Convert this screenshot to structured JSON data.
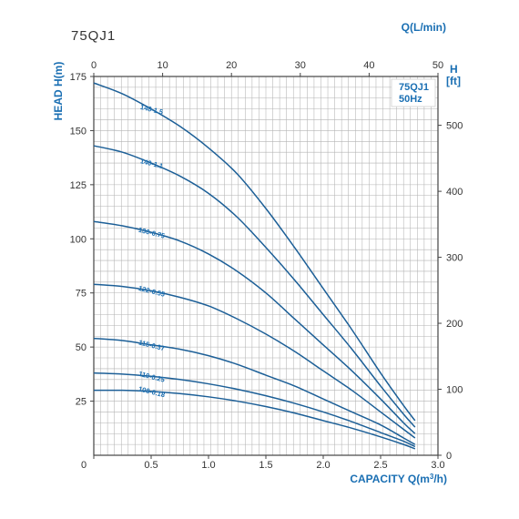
{
  "chart_title": "75QJ1",
  "legend_box": {
    "line1": "75QJ1",
    "line2": "50Hz"
  },
  "colors": {
    "curve": "#1c5f97",
    "accent": "#1a6fb3",
    "grid": "#b3b3b3",
    "frame": "#444444"
  },
  "chart_data": {
    "type": "line",
    "title": "75QJ1",
    "xlabel": "CAPACITY Q(m³/h)",
    "ylabel": "HEAD H(m)",
    "x2label": "Q(L/min)",
    "y2label": "H",
    "y2unit": "[ft]",
    "xlim": [
      0,
      3.0
    ],
    "ylim": [
      0,
      175
    ],
    "x2lim": [
      0,
      50
    ],
    "y2lim": [
      0,
      574
    ],
    "xticks": [
      "0",
      "0.5",
      "1.0",
      "1.5",
      "2.0",
      "2.5",
      "3.0"
    ],
    "yticks": [
      "25",
      "50",
      "75",
      "100",
      "125",
      "150",
      "175"
    ],
    "x2ticks": [
      "0",
      "10",
      "20",
      "30",
      "40",
      "50"
    ],
    "y2ticks": [
      "0",
      "100",
      "200",
      "300",
      "400",
      "500"
    ],
    "grid": true,
    "series": [
      {
        "name": "148-1.5",
        "x": [
          0,
          0.25,
          0.5,
          0.75,
          1.0,
          1.25,
          1.5,
          1.75,
          2.0,
          2.25,
          2.5,
          2.7,
          2.8
        ],
        "y": [
          172,
          167,
          160,
          152,
          142,
          130,
          114,
          96,
          77,
          58,
          38,
          23,
          16
        ]
      },
      {
        "name": "140-1.1",
        "x": [
          0,
          0.25,
          0.5,
          0.75,
          1.0,
          1.25,
          1.5,
          1.75,
          2.0,
          2.25,
          2.5,
          2.7,
          2.8
        ],
        "y": [
          143,
          140,
          135,
          129,
          121,
          110,
          96,
          81,
          65,
          49,
          32,
          19,
          13
        ]
      },
      {
        "name": "130-0.75",
        "x": [
          0,
          0.25,
          0.5,
          0.75,
          1.0,
          1.25,
          1.5,
          1.75,
          2.0,
          2.25,
          2.5,
          2.7,
          2.8
        ],
        "y": [
          108,
          106,
          103,
          99,
          93,
          85,
          75,
          63,
          51,
          39,
          26,
          15,
          10
        ]
      },
      {
        "name": "122-0.55",
        "x": [
          0,
          0.25,
          0.5,
          0.75,
          1.0,
          1.25,
          1.5,
          1.75,
          2.0,
          2.25,
          2.5,
          2.7,
          2.8
        ],
        "y": [
          79,
          78,
          76,
          73,
          69,
          63,
          56,
          48,
          39,
          30,
          20,
          12,
          8
        ]
      },
      {
        "name": "115-0.37",
        "x": [
          0,
          0.25,
          0.5,
          0.75,
          1.0,
          1.25,
          1.5,
          1.75,
          2.0,
          2.25,
          2.5,
          2.7,
          2.8
        ],
        "y": [
          54,
          53,
          51,
          49,
          46,
          42,
          37,
          32,
          26,
          20,
          14,
          8,
          5
        ]
      },
      {
        "name": "110-0.25",
        "x": [
          0,
          0.25,
          0.5,
          0.75,
          1.0,
          1.25,
          1.5,
          1.75,
          2.0,
          2.25,
          2.5,
          2.7,
          2.8
        ],
        "y": [
          38,
          37.5,
          36.5,
          35,
          33,
          30.5,
          27.5,
          24,
          20,
          15.5,
          10.5,
          6.5,
          4
        ]
      },
      {
        "name": "108-0.18",
        "x": [
          0,
          0.25,
          0.5,
          0.75,
          1.0,
          1.25,
          1.5,
          1.75,
          2.0,
          2.25,
          2.5,
          2.7,
          2.8
        ],
        "y": [
          30,
          30,
          29.5,
          28.5,
          27,
          25,
          22.5,
          19.5,
          16,
          12.5,
          8.5,
          5,
          3
        ]
      }
    ]
  }
}
